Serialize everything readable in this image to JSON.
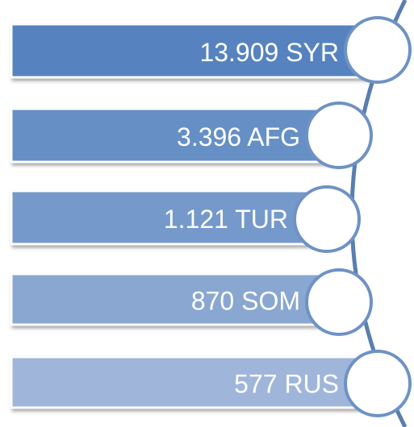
{
  "items": [
    "13.909 SYR",
    "3.396 AFG",
    "1.121 TUR",
    "870 SOM",
    "577 RUS"
  ]
}
